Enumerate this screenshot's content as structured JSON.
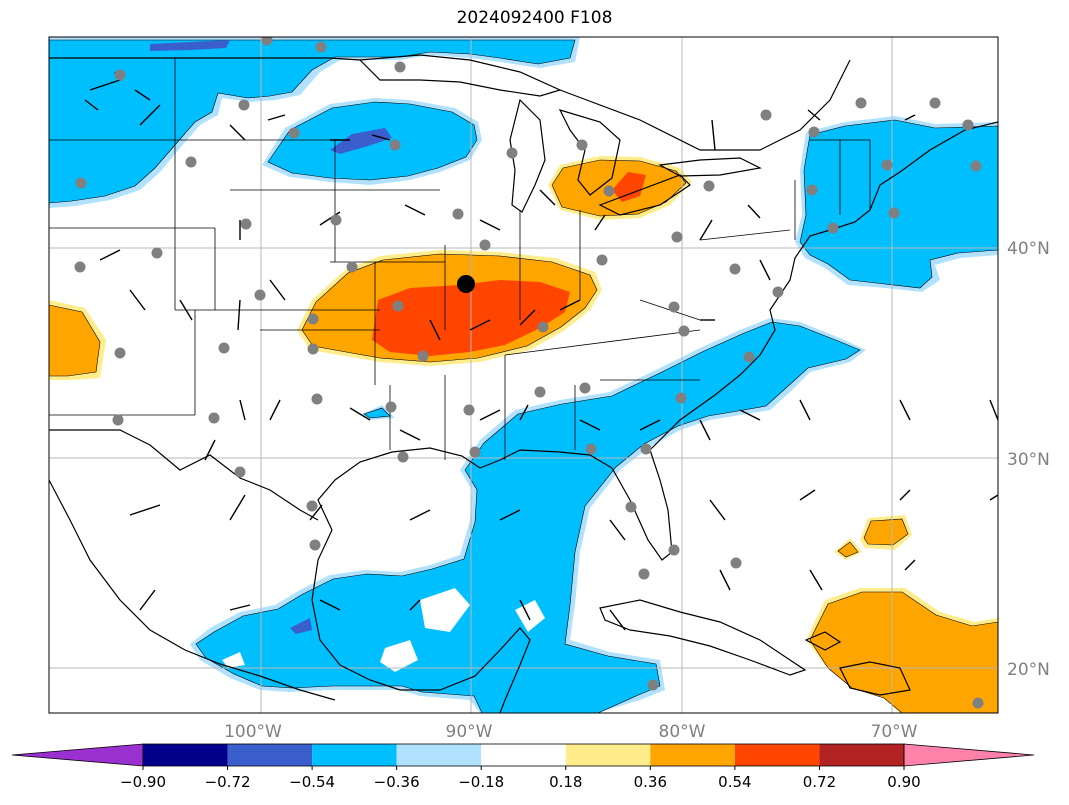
{
  "title": "2024092400 F108",
  "lon_labels": [
    "100°W",
    "90°W",
    "80°W",
    "70°W"
  ],
  "lat_labels": [
    "40°N",
    "30°N",
    "20°N"
  ],
  "colorbar": {
    "ticks": [
      "−0.90",
      "−0.72",
      "−0.54",
      "−0.36",
      "−0.18",
      "0.18",
      "0.36",
      "0.54",
      "0.72",
      "0.90"
    ],
    "colors": [
      "#9b30d0",
      "#00008b",
      "#3a5fcd",
      "#00bfff",
      "#b0e2ff",
      "#ffffff",
      "#ffec8b",
      "#ffa500",
      "#ff4500",
      "#b22222",
      "#ff82ab"
    ]
  },
  "field_colors": {
    "neg_weak": "#b0e2ff",
    "neg_mid": "#00bfff",
    "neg_strong": "#3a5fcd",
    "pos_weak": "#ffec8b",
    "pos_mid": "#ffa500",
    "pos_strong": "#ff4500"
  },
  "station_color": "#808080",
  "highlight_point_color": "#000000"
}
